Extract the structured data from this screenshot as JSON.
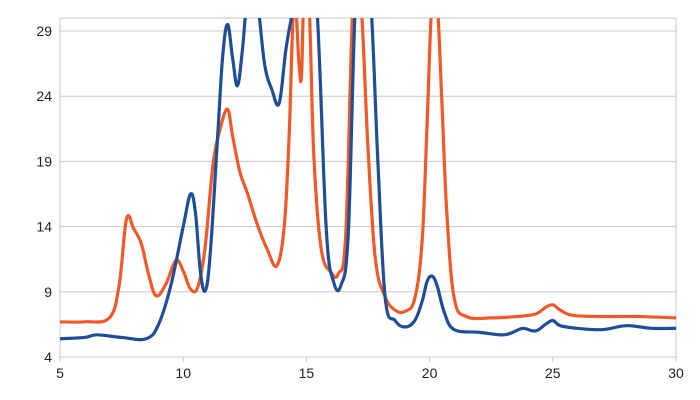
{
  "chart_data": {
    "type": "line",
    "xlim": [
      5,
      30
    ],
    "ylim": [
      4,
      30
    ],
    "x_ticks": [
      "5",
      "10",
      "15",
      "20",
      "25",
      "30"
    ],
    "y_ticks": [
      "4",
      "9",
      "14",
      "19",
      "24",
      "29"
    ],
    "grid": "horizontal",
    "legend": "none",
    "series": [
      {
        "color": "#f05a28",
        "x": [
          5,
          6,
          7,
          7.4,
          7.7,
          8.0,
          8.3,
          8.6,
          8.9,
          9.3,
          9.7,
          10.0,
          10.3,
          10.6,
          10.9,
          11.2,
          11.5,
          11.8,
          12.0,
          12.3,
          12.6,
          13.0,
          13.4,
          13.8,
          14.1,
          14.3,
          14.5,
          14.7,
          14.8,
          14.9,
          15.1,
          15.3,
          15.6,
          16.0,
          16.3,
          16.6,
          16.9,
          17.2,
          17.5,
          17.8,
          18.2,
          18.6,
          19.0,
          19.4,
          19.7,
          19.9,
          20.1,
          20.3,
          20.5,
          20.7,
          21.0,
          21.5,
          22.5,
          23.5,
          24.3,
          24.7,
          25.0,
          25.3,
          25.8,
          27,
          28.5,
          30
        ],
        "values": [
          6.7,
          6.7,
          7.0,
          9.5,
          14.6,
          13.8,
          12.7,
          10.3,
          8.7,
          9.6,
          11.4,
          10.6,
          9.2,
          9.4,
          12.6,
          18.6,
          21.5,
          23.0,
          21.0,
          18.2,
          16.6,
          14.2,
          12.3,
          11.0,
          14.0,
          21.0,
          30,
          26.5,
          25.5,
          30,
          30,
          19.5,
          12.3,
          10.5,
          10.4,
          13.5,
          30,
          30,
          20.0,
          11.5,
          8.6,
          7.6,
          7.5,
          8.5,
          13.0,
          22.0,
          30,
          30,
          23.5,
          15.0,
          8.5,
          7.1,
          7.0,
          7.1,
          7.3,
          7.8,
          8.0,
          7.6,
          7.2,
          7.1,
          7.1,
          7.0
        ]
      },
      {
        "color": "#1f4e96",
        "x": [
          5,
          6,
          6.5,
          7.5,
          8.5,
          9.0,
          9.5,
          10.0,
          10.3,
          10.5,
          10.7,
          10.9,
          11.1,
          11.4,
          11.6,
          11.8,
          12.0,
          12.2,
          12.4,
          12.6,
          12.8,
          13.0,
          13.3,
          13.6,
          13.9,
          14.2,
          14.6,
          15.0,
          15.4,
          15.8,
          16.1,
          16.4,
          16.7,
          17.0,
          17.3,
          17.6,
          17.9,
          18.2,
          18.6,
          19.0,
          19.4,
          19.7,
          19.9,
          20.1,
          20.3,
          20.6,
          21.0,
          22.0,
          23.0,
          23.5,
          23.8,
          24.3,
          24.7,
          25.0,
          25.3,
          26.0,
          27.0,
          28.0,
          29.0,
          30
        ],
        "values": [
          5.4,
          5.5,
          5.7,
          5.5,
          5.4,
          6.5,
          9.5,
          14.0,
          16.5,
          15.0,
          10.5,
          9.1,
          12.0,
          21.0,
          27.0,
          29.5,
          27.0,
          24.8,
          27.5,
          30,
          30,
          30,
          26.5,
          24.5,
          23.5,
          28.0,
          30,
          30,
          30,
          14.0,
          9.8,
          9.5,
          13.5,
          30,
          30,
          30,
          19.0,
          8.5,
          6.8,
          6.3,
          6.8,
          8.3,
          9.8,
          10.2,
          9.5,
          7.4,
          6.1,
          5.9,
          5.7,
          6.0,
          6.2,
          6.0,
          6.5,
          6.8,
          6.4,
          6.2,
          6.1,
          6.4,
          6.2,
          6.2
        ]
      }
    ]
  }
}
